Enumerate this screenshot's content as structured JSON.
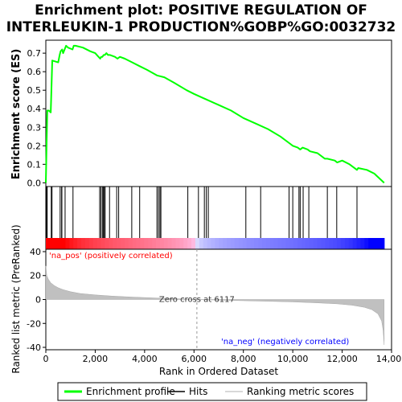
{
  "chart_data": {
    "type": "line",
    "title_lines": [
      "Enrichment plot: POSITIVE REGULATION OF",
      "INTERLEUKIN-1 PRODUCTION%GOBP%GO:0032732"
    ],
    "es_panel": {
      "ylabel": "Enrichment score (ES)",
      "yticks": [
        "0.0",
        "0.1",
        "0.2",
        "0.3",
        "0.4",
        "0.5",
        "0.6",
        "0.7"
      ],
      "ylim": [
        -0.02,
        0.77
      ],
      "series": [
        {
          "name": "Enrichment profile",
          "color": "#00ff00",
          "x": [
            0,
            60,
            120,
            200,
            215,
            260,
            500,
            560,
            600,
            660,
            700,
            820,
            900,
            1080,
            1130,
            1200,
            1500,
            1800,
            2000,
            2200,
            2240,
            2290,
            2340,
            2390,
            2450,
            2520,
            2600,
            2800,
            2900,
            3000,
            3200,
            3500,
            3800,
            4100,
            4500,
            4800,
            5200,
            5700,
            6000,
            6500,
            7000,
            7500,
            8000,
            8500,
            9000,
            9500,
            9900,
            10000,
            10200,
            10300,
            10400,
            10600,
            10700,
            11000,
            11300,
            11400,
            11700,
            11800,
            12000,
            12300,
            12600,
            12650,
            13000,
            13300,
            13700
          ],
          "y": [
            0.0,
            0.39,
            0.39,
            0.38,
            0.45,
            0.66,
            0.65,
            0.69,
            0.71,
            0.72,
            0.7,
            0.74,
            0.73,
            0.72,
            0.74,
            0.74,
            0.73,
            0.71,
            0.7,
            0.67,
            0.68,
            0.68,
            0.69,
            0.69,
            0.7,
            0.69,
            0.69,
            0.68,
            0.67,
            0.68,
            0.67,
            0.65,
            0.63,
            0.61,
            0.58,
            0.57,
            0.54,
            0.5,
            0.48,
            0.45,
            0.42,
            0.39,
            0.35,
            0.32,
            0.29,
            0.25,
            0.21,
            0.2,
            0.19,
            0.18,
            0.19,
            0.18,
            0.17,
            0.16,
            0.13,
            0.13,
            0.12,
            0.11,
            0.12,
            0.1,
            0.07,
            0.08,
            0.07,
            0.05,
            0.0
          ]
        }
      ]
    },
    "hits": {
      "name": "Hits",
      "positions": [
        30,
        55,
        220,
        250,
        580,
        640,
        650,
        780,
        1100,
        2180,
        2230,
        2290,
        2330,
        2370,
        2400,
        2580,
        2870,
        2950,
        3480,
        3800,
        4500,
        4560,
        4620,
        4660,
        5750,
        6180,
        6420,
        6500,
        6580,
        8100,
        8700,
        9850,
        10000,
        10250,
        10300,
        10420,
        10650,
        11400,
        11780,
        12600
      ]
    },
    "ranked_metric": {
      "name": "Ranking metric scores",
      "ylabel": "Ranked list metric (PreRanked)",
      "xlabel": "Rank in Ordered Dataset",
      "xlim": [
        0,
        14000
      ],
      "ylim": [
        -42,
        42
      ],
      "xticks": [
        "0",
        "2,000",
        "4,000",
        "6,000",
        "8,000",
        "10,000",
        "12,000",
        "14,000"
      ],
      "yticks": [
        "40",
        "20",
        "0",
        "-20",
        "-40"
      ],
      "ranks": [
        0,
        40,
        100,
        200,
        350,
        500,
        700,
        1000,
        1400,
        2000,
        2700,
        3500,
        4500,
        5500,
        6117,
        7000,
        8000,
        9000,
        10000,
        11000,
        11800,
        12400,
        12900,
        13200,
        13450,
        13600,
        13660,
        13700
      ],
      "values": [
        28,
        20,
        17,
        14,
        11.5,
        9.8,
        8.2,
        6.5,
        5.0,
        3.8,
        2.8,
        2.0,
        1.2,
        0.5,
        0.0,
        -0.5,
        -1.0,
        -1.5,
        -2.0,
        -2.8,
        -3.6,
        -4.8,
        -6.5,
        -8.5,
        -12,
        -18,
        -26,
        -38
      ],
      "pos_label": "'na_pos' (positively correlated)",
      "neg_label": "'na_neg' (negatively correlated)",
      "zero_cross_label": "Zero cross at 6117",
      "zero_cross": 6117,
      "pos_color": "#ff0000",
      "neg_color": "#0000ff"
    },
    "legend": {
      "items": [
        {
          "label": "Enrichment profile",
          "color": "#00ff00"
        },
        {
          "label": "Hits",
          "color": "#000000"
        },
        {
          "label": "Ranking metric scores",
          "color": "#c0c0c0"
        }
      ]
    }
  }
}
